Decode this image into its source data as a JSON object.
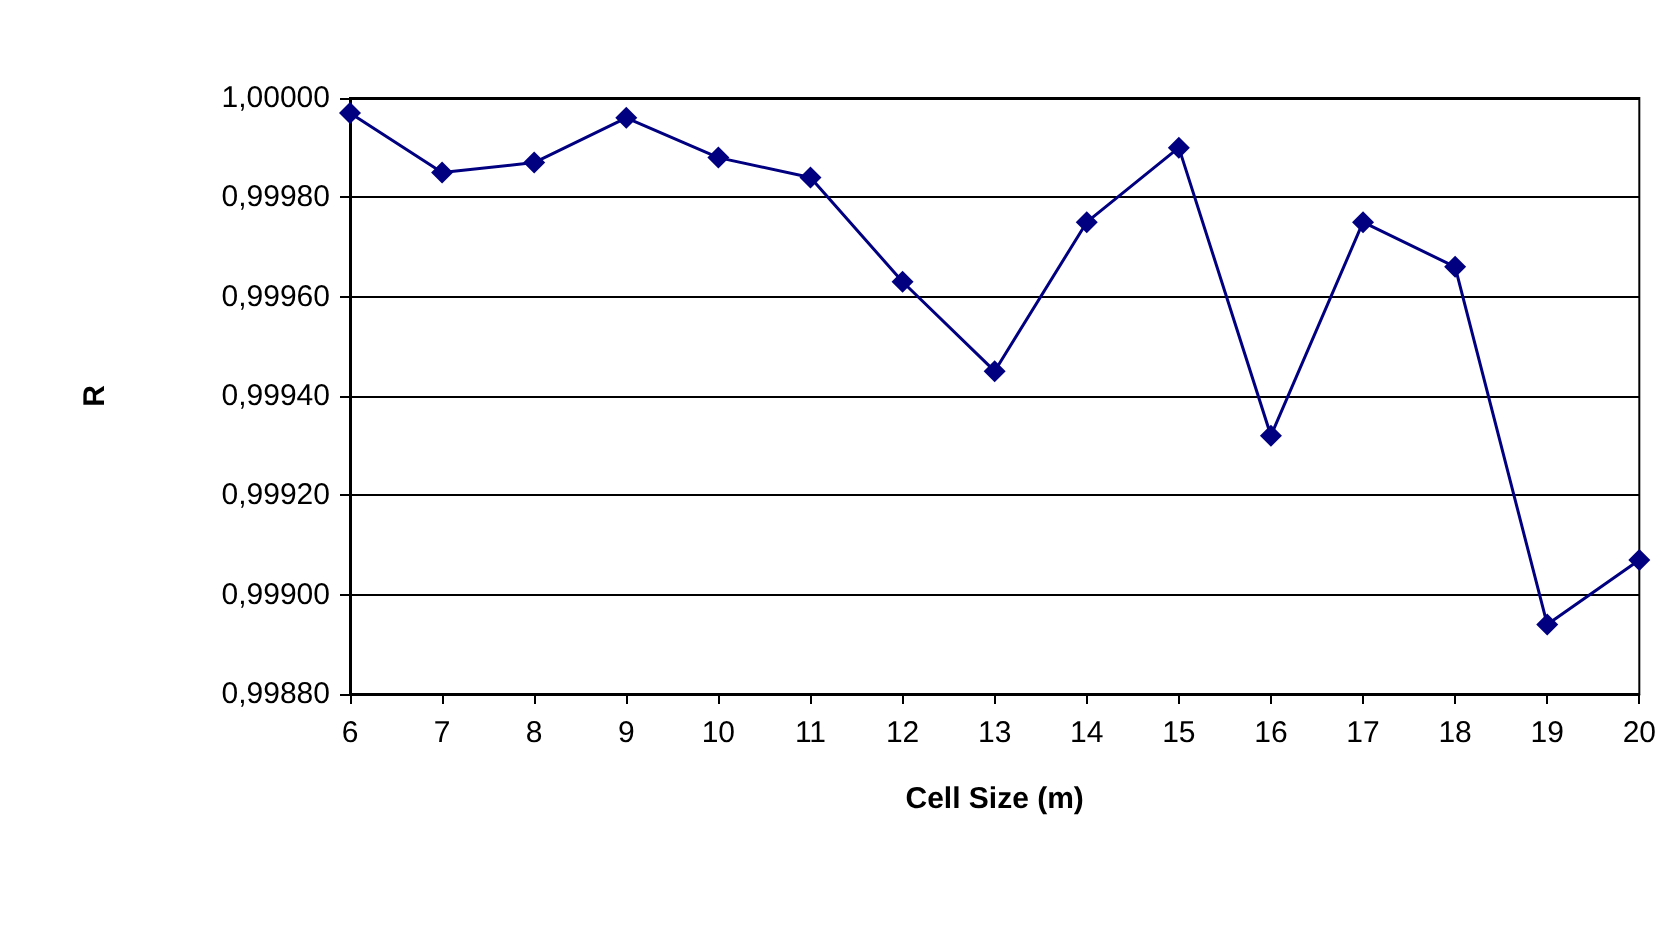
{
  "chart_data": {
    "type": "line",
    "xlabel": "Cell Size (m)",
    "ylabel": "R",
    "x": [
      6,
      7,
      8,
      9,
      10,
      11,
      12,
      13,
      14,
      15,
      16,
      17,
      18,
      19,
      20
    ],
    "series": [
      {
        "color": "#000080",
        "values": [
          0.99997,
          0.99985,
          0.99987,
          0.99996,
          0.99988,
          0.99984,
          0.99963,
          0.99945,
          0.99975,
          0.9999,
          0.99932,
          0.99975,
          0.99966,
          0.99894,
          0.99907
        ]
      }
    ],
    "xlim": [
      6,
      20
    ],
    "xticks": [
      6,
      7,
      8,
      9,
      10,
      11,
      12,
      13,
      14,
      15,
      16,
      17,
      18,
      19,
      20
    ],
    "ylim": [
      0.9988,
      1
    ],
    "yticks": [
      {
        "value": 0.9988,
        "label": "0,99880"
      },
      {
        "value": 0.999,
        "label": "0,99900"
      },
      {
        "value": 0.9992,
        "label": "0,99920"
      },
      {
        "value": 0.9994,
        "label": "0,99940"
      },
      {
        "value": 0.9996,
        "label": "0,99960"
      },
      {
        "value": 0.9998,
        "label": "0,99980"
      },
      {
        "value": 1,
        "label": "1,00000"
      }
    ],
    "grid": "y",
    "marker": "diamond",
    "line_style": "solid"
  }
}
